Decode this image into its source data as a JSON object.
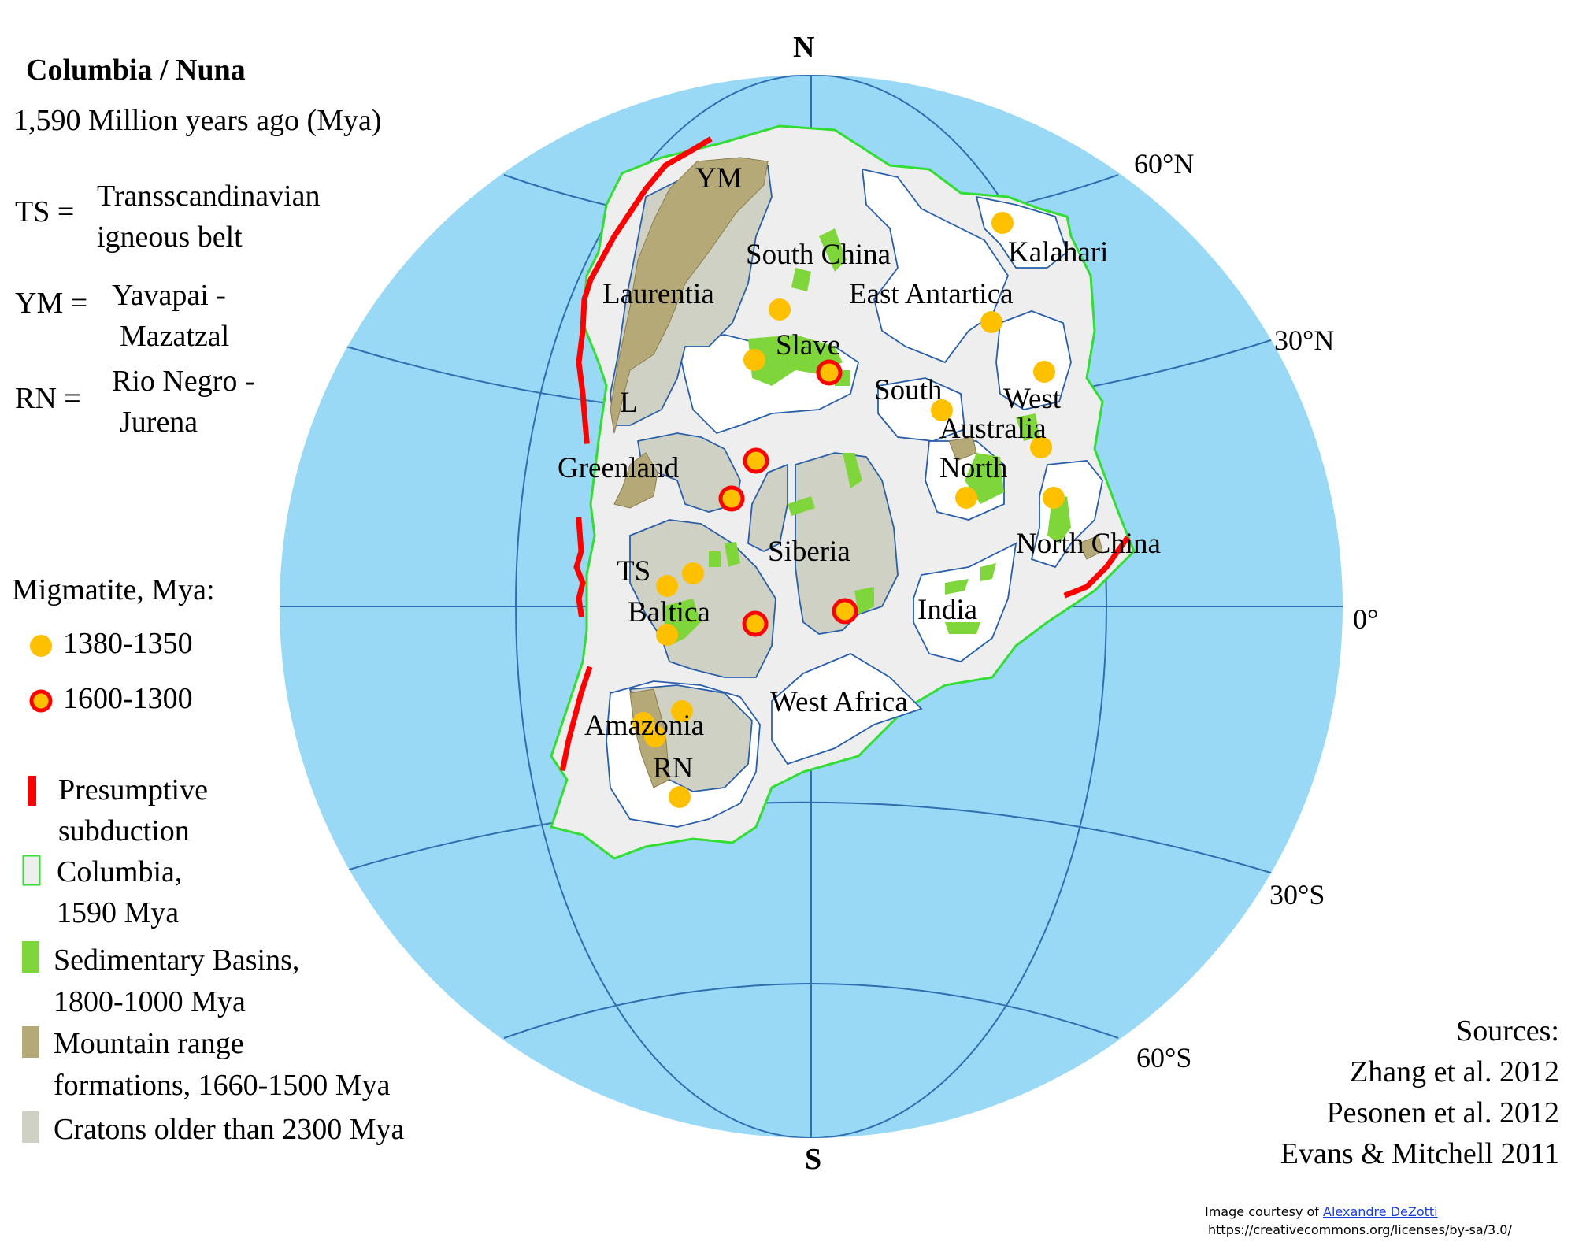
{
  "title": "Columbia / Nuna",
  "subtitle": "1,590 Million years ago (Mya)",
  "abbreviations": [
    {
      "abbr": "TS =",
      "line1": "Transscandinavian",
      "line2": "igneous belt"
    },
    {
      "abbr": "YM =",
      "line1": "Yavapai -",
      "line2": "Mazatzal"
    },
    {
      "abbr": "RN =",
      "line1": "Rio Negro -",
      "line2": "Jurena"
    }
  ],
  "migmatite": {
    "heading": "Migmatite, Mya:",
    "items": [
      {
        "label": "1380-1350",
        "fill": "#ffc000",
        "stroke": "none"
      },
      {
        "label": "1600-1300",
        "fill": "#ffc000",
        "stroke": "#ff0000"
      }
    ]
  },
  "legend": [
    {
      "line1": "Presumptive",
      "line2": "subduction",
      "color": "#ff0000"
    },
    {
      "line1": "Columbia,",
      "line2": "1590 Mya",
      "color": "#33dd33"
    },
    {
      "line1": "Sedimentary Basins,",
      "line2": "1800-1000 Mya",
      "color": "#7fd63a"
    },
    {
      "line1": "Mountain range",
      "line2": "formations, 1660-1500 Mya",
      "color": "#b5a978"
    },
    {
      "line1": "Cratons older than 2300 Mya",
      "line2": "",
      "color": "#cfd1c4"
    }
  ],
  "compass": {
    "north": "N",
    "south": "S"
  },
  "latitudes": [
    "60°N",
    "30°N",
    "0°",
    "30°S",
    "60°S"
  ],
  "cratons": [
    "YM",
    "South China",
    "Kalahari",
    "Laurentia",
    "East Antartica",
    "Slave",
    "South",
    "West",
    "Australia",
    "L",
    "Greenland",
    "North",
    "Siberia",
    "North China",
    "TS",
    "Baltica",
    "India",
    "West Africa",
    "Amazonia",
    "RN"
  ],
  "sources": {
    "heading": "Sources:",
    "items": [
      "Zhang et al. 2012",
      "Pesonen et al. 2012",
      "Evans & Mitchell 2011"
    ]
  },
  "credit": {
    "prefix": "Image courtesy of",
    "author": "Alexandre DeZotti",
    "license": "https://creativecommons.org/licenses/by-sa/3.0/"
  },
  "colors": {
    "ocean": "#99d9f5",
    "grid": "#2f6fb0",
    "supercontinent": "#eeeeee",
    "craton_outline": "#2a5fa8",
    "migmatite": "#ffc000",
    "subduction": "#ff0000",
    "sedimentary": "#7fd63a",
    "mountain": "#b5a978",
    "old_craton": "#cfd1c4"
  }
}
